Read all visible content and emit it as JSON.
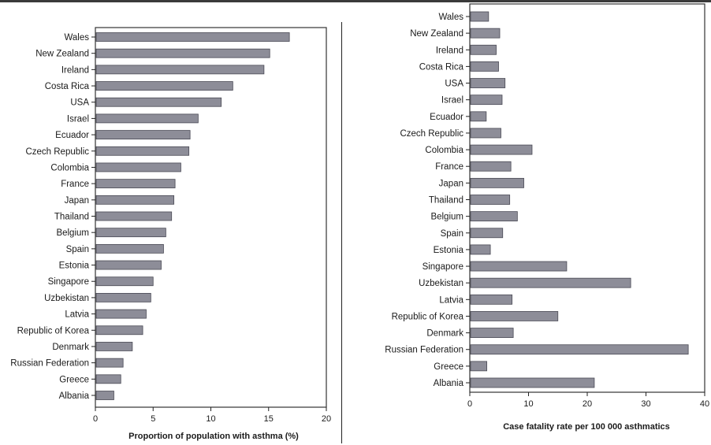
{
  "colors": {
    "bar_fill": "#8d8d98",
    "bar_stroke": "#4a4a55",
    "axis": "#222222",
    "frame": "#333333"
  },
  "chart_data": [
    {
      "type": "bar",
      "orientation": "horizontal",
      "categories": [
        "Wales",
        "New Zealand",
        "Ireland",
        "Costa Rica",
        "USA",
        "Israel",
        "Ecuador",
        "Czech Republic",
        "Colombia",
        "France",
        "Japan",
        "Thailand",
        "Belgium",
        "Spain",
        "Estonia",
        "Singapore",
        "Uzbekistan",
        "Latvia",
        "Republic of Korea",
        "Denmark",
        "Russian Federation",
        "Greece",
        "Albania"
      ],
      "values": [
        16.8,
        15.1,
        14.6,
        11.9,
        10.9,
        8.9,
        8.2,
        8.1,
        7.4,
        6.9,
        6.8,
        6.6,
        6.1,
        5.9,
        5.7,
        5.0,
        4.8,
        4.4,
        4.1,
        3.2,
        2.4,
        2.2,
        1.6
      ],
      "xlim": [
        0,
        20
      ],
      "xticks": [
        "0",
        "5",
        "10",
        "15",
        "20"
      ],
      "xlabel": "Proportion of population with asthma (%)",
      "grid": false
    },
    {
      "type": "bar",
      "orientation": "horizontal",
      "categories": [
        "Wales",
        "New Zealand",
        "Ireland",
        "Costa Rica",
        "USA",
        "Israel",
        "Ecuador",
        "Czech Republic",
        "Colombia",
        "France",
        "Japan",
        "Thailand",
        "Belgium",
        "Spain",
        "Estonia",
        "Singapore",
        "Uzbekistan",
        "Latvia",
        "Republic of Korea",
        "Denmark",
        "Russian Federation",
        "Greece",
        "Albania"
      ],
      "values": [
        3.2,
        5.1,
        4.5,
        4.9,
        6.0,
        5.5,
        2.8,
        5.3,
        10.6,
        7.0,
        9.2,
        6.8,
        8.1,
        5.6,
        3.5,
        16.5,
        27.4,
        7.2,
        15.0,
        7.4,
        37.2,
        2.9,
        21.2
      ],
      "xlim": [
        0,
        40
      ],
      "xticks": [
        "0",
        "10",
        "20",
        "30",
        "40"
      ],
      "xlabel": "Case fatality rate per 100 000 asthmatics",
      "grid": false
    }
  ]
}
